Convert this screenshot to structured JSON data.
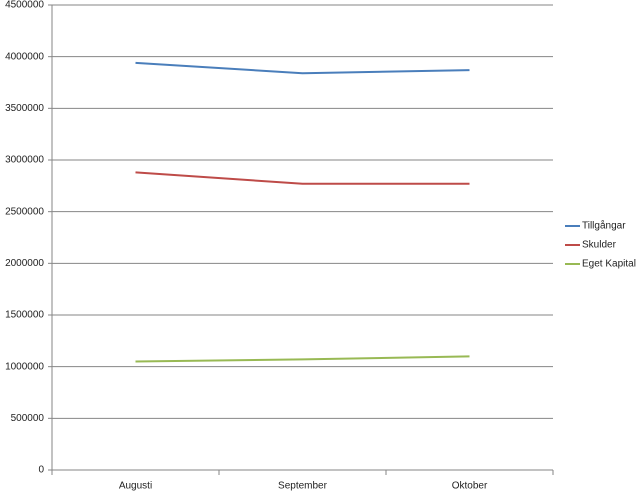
{
  "chart_data": {
    "type": "line",
    "categories": [
      "Augusti",
      "September",
      "Oktober"
    ],
    "series": [
      {
        "name": "Tillgångar",
        "color": "#4a7ebb",
        "values": [
          3940000,
          3840000,
          3870000
        ]
      },
      {
        "name": "Skulder",
        "color": "#be4b48",
        "values": [
          2880000,
          2770000,
          2770000
        ]
      },
      {
        "name": "Eget Kapital",
        "color": "#98b954",
        "values": [
          1050000,
          1070000,
          1100000
        ]
      }
    ],
    "ylim": [
      0,
      4500000
    ],
    "yticks": [
      0,
      500000,
      1000000,
      1500000,
      2000000,
      2500000,
      3000000,
      3500000,
      4000000,
      4500000
    ],
    "grid": true,
    "legend": "right"
  }
}
